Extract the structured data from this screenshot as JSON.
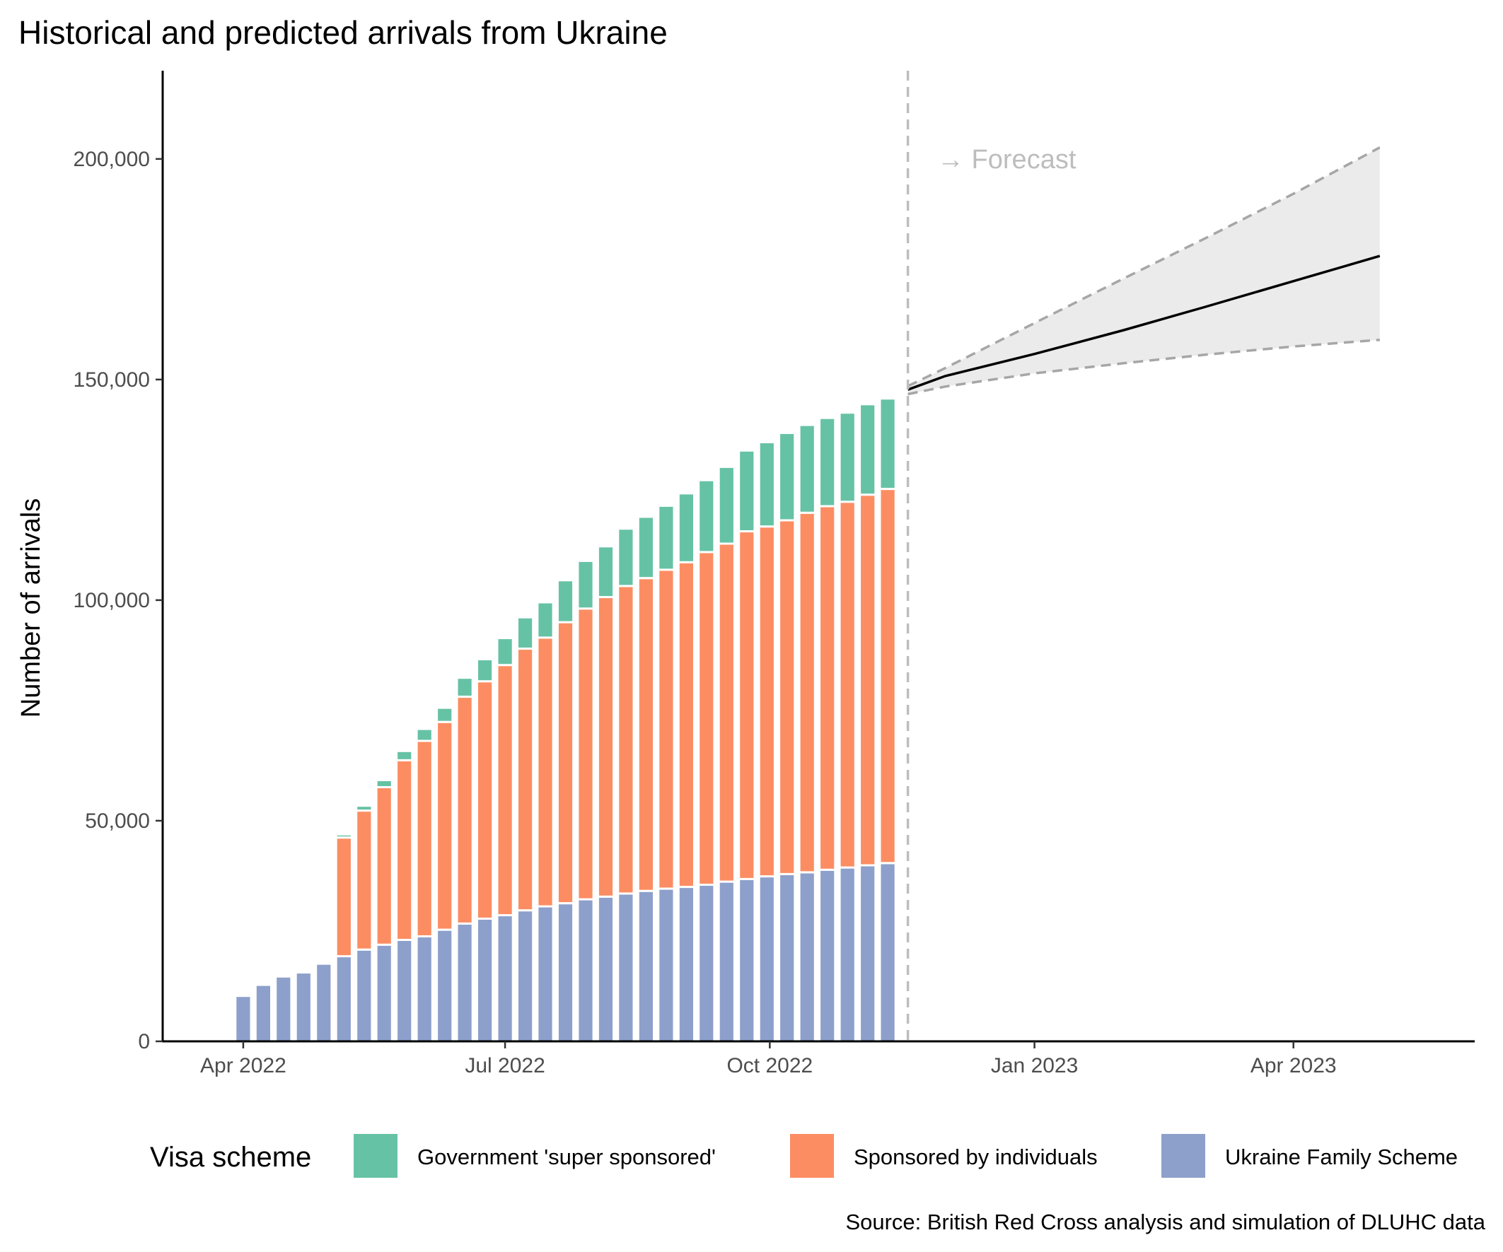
{
  "chart_data": {
    "type": "bar",
    "title": "Historical and predicted arrivals from Ukraine",
    "xlabel": "",
    "ylabel": "Number of arrivals",
    "caption": "Source: British Red Cross analysis and simulation of DLUHC data",
    "annotation": "→ Forecast",
    "stacked": true,
    "ylim": [
      0,
      220000
    ],
    "xlim": [
      "2022-03-04",
      "2023-06-03"
    ],
    "y_ticks": [
      0,
      50000,
      100000,
      150000,
      200000
    ],
    "y_tick_labels": [
      "0",
      "50,000",
      "100,000",
      "150,000",
      "200,000"
    ],
    "x_ticks": [
      "2022-04-01",
      "2022-07-01",
      "2022-10-01",
      "2023-01-01",
      "2023-04-01"
    ],
    "x_tick_labels": [
      "Apr 2022",
      "Jul 2022",
      "Oct 2022",
      "Jan 2023",
      "Apr 2023"
    ],
    "forecast_start": "2022-11-18",
    "categories": [
      "2022-04-01",
      "2022-04-08",
      "2022-04-15",
      "2022-04-22",
      "2022-04-29",
      "2022-05-06",
      "2022-05-13",
      "2022-05-20",
      "2022-05-27",
      "2022-06-03",
      "2022-06-10",
      "2022-06-17",
      "2022-06-24",
      "2022-07-01",
      "2022-07-08",
      "2022-07-15",
      "2022-07-22",
      "2022-07-29",
      "2022-08-05",
      "2022-08-12",
      "2022-08-19",
      "2022-08-26",
      "2022-09-02",
      "2022-09-09",
      "2022-09-16",
      "2022-09-23",
      "2022-09-30",
      "2022-10-07",
      "2022-10-14",
      "2022-10-21",
      "2022-10-28",
      "2022-11-04",
      "2022-11-11"
    ],
    "series": [
      {
        "name": "Ukraine Family Scheme",
        "color": "#8DA0CB",
        "values": [
          10300,
          12800,
          14700,
          15600,
          17600,
          19300,
          20800,
          21900,
          23000,
          23800,
          25300,
          26700,
          27800,
          28600,
          29700,
          30600,
          31300,
          32200,
          32800,
          33500,
          34100,
          34600,
          35000,
          35500,
          36200,
          36800,
          37400,
          37900,
          38300,
          38900,
          39400,
          39900,
          40400
        ]
      },
      {
        "name": "Sponsored by individuals",
        "color": "#FC8D62",
        "values": [
          0,
          0,
          0,
          0,
          0,
          26900,
          31500,
          35700,
          40700,
          44300,
          47100,
          51400,
          53800,
          56700,
          59300,
          60900,
          63700,
          65900,
          67900,
          69700,
          70900,
          72300,
          73600,
          75400,
          76600,
          78800,
          79300,
          80200,
          81500,
          82400,
          82900,
          84000,
          84800
        ]
      },
      {
        "name": "Government 'super sponsored'",
        "color": "#66C2A5",
        "values": [
          0,
          0,
          0,
          0,
          0,
          700,
          1100,
          1600,
          2100,
          2700,
          3200,
          4300,
          5000,
          6100,
          7100,
          8000,
          9500,
          10800,
          11500,
          13000,
          13900,
          14500,
          15600,
          16300,
          17400,
          18300,
          19100,
          19800,
          19900,
          20000,
          20200,
          20500,
          20500
        ]
      }
    ],
    "forecast": {
      "x": [
        "2022-11-18",
        "2022-12-01",
        "2023-01-01",
        "2023-02-01",
        "2023-03-01",
        "2023-04-01",
        "2023-05-01"
      ],
      "mean": [
        147700,
        150800,
        155800,
        161200,
        166400,
        172300,
        178000
      ],
      "lower": [
        146700,
        148400,
        151400,
        153700,
        155600,
        157500,
        159000
      ],
      "upper": [
        148500,
        152600,
        162800,
        172900,
        181900,
        192100,
        202600
      ]
    }
  }
}
